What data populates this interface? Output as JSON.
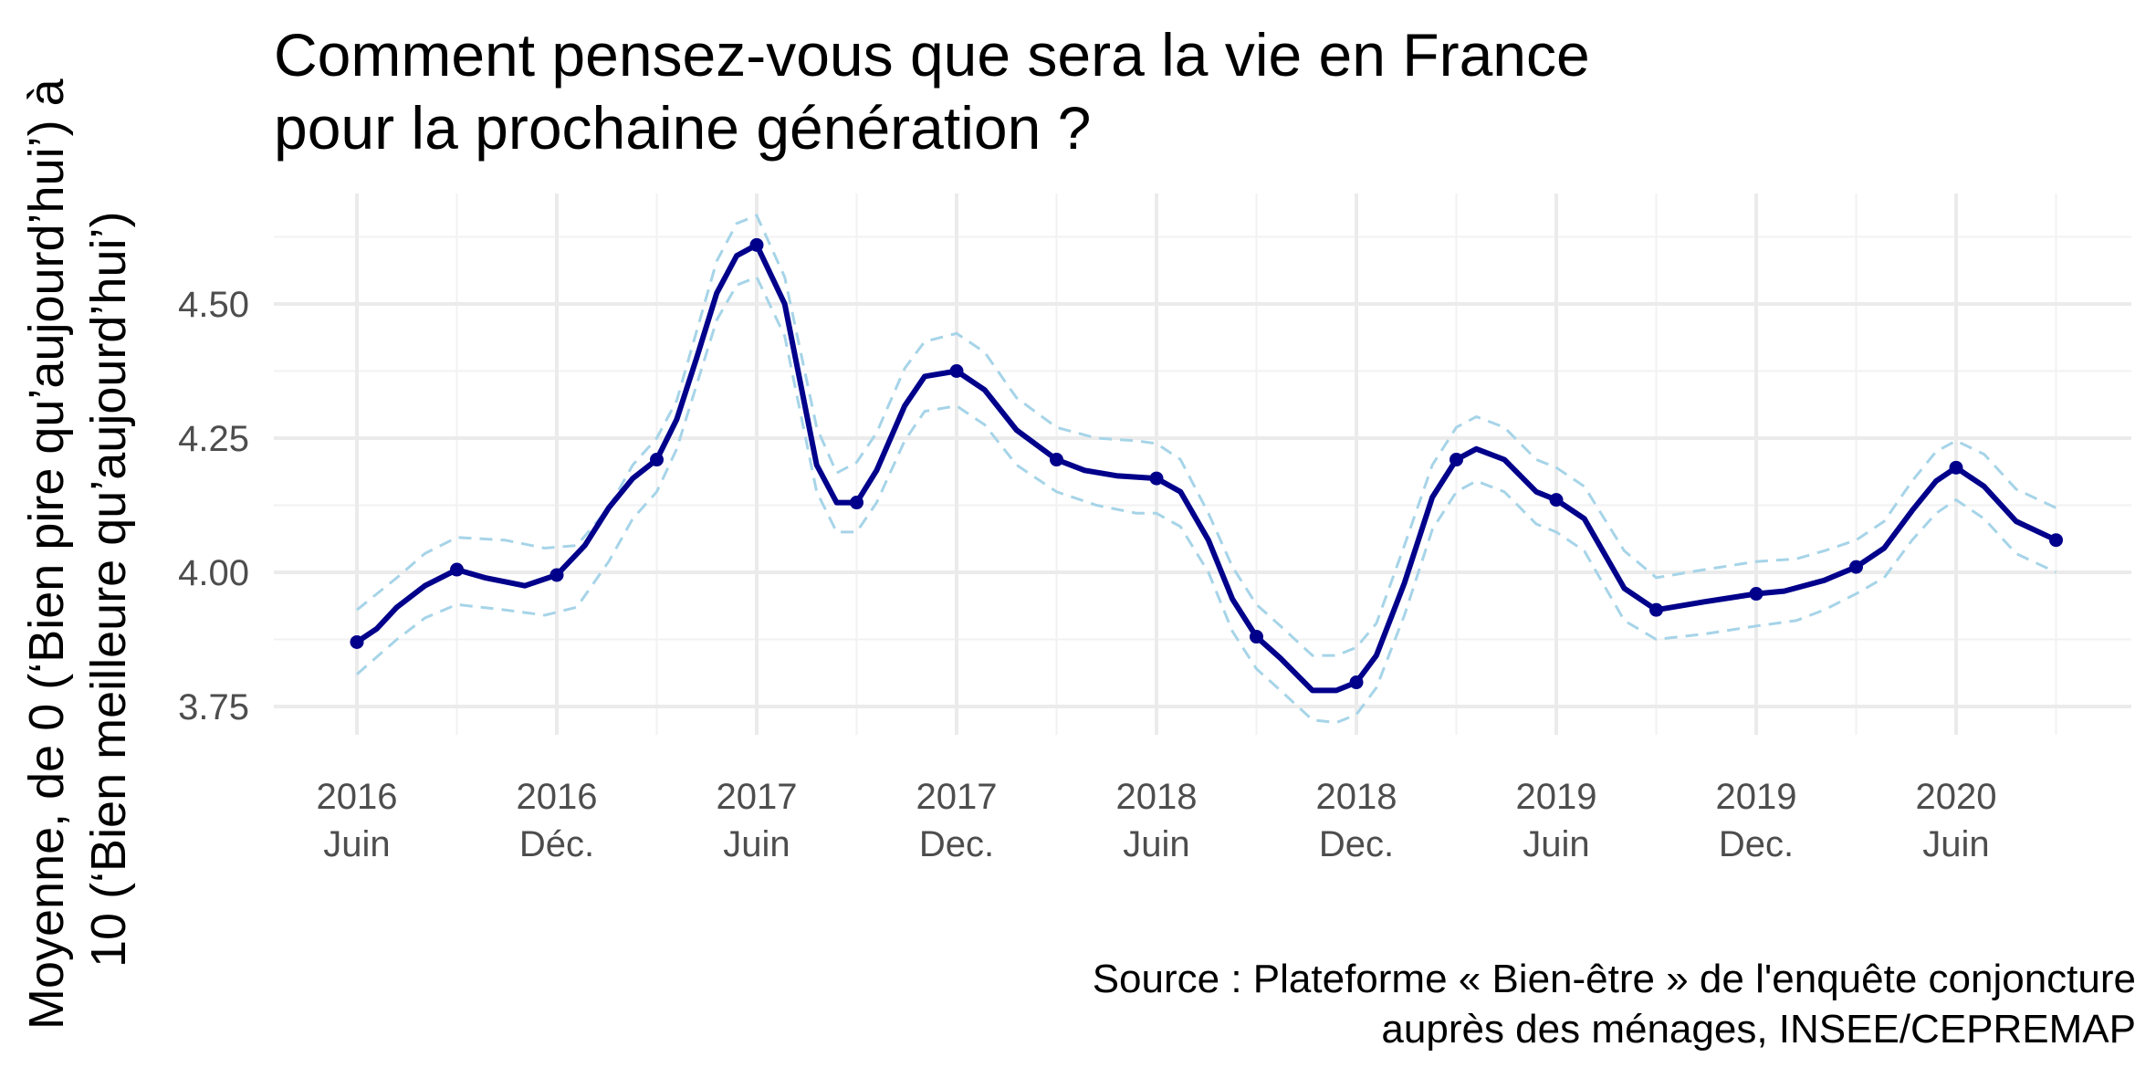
{
  "chart_data": {
    "type": "line",
    "title": [
      "Comment pensez-vous que sera la vie en France",
      "pour la prochaine génération ?"
    ],
    "ylabel": [
      "Moyenne, de 0 (‘Bien pire qu’aujourd’hui’) à",
      "10 (‘Bien meilleure qu’aujourd’hui’)"
    ],
    "xlabel": "",
    "caption": [
      "Source : Plateforme « Bien-être » de l'enquête conjoncture",
      "auprès des ménages, INSEE/CEPREMAP"
    ],
    "ylim": [
      3.68,
      4.72
    ],
    "yticks": [
      3.75,
      4.0,
      4.25,
      4.5
    ],
    "ytick_labels": [
      "3.75",
      "4.00",
      "4.25",
      "4.50"
    ],
    "xlim": [
      2016.18,
      2020.7
    ],
    "xticks": [
      {
        "x": 2016.33,
        "year": "2016",
        "period": "Juin"
      },
      {
        "x": 2016.83,
        "year": "2016",
        "period": "Déc."
      },
      {
        "x": 2017.33,
        "year": "2017",
        "period": "Juin"
      },
      {
        "x": 2017.83,
        "year": "2017",
        "period": "Dec."
      },
      {
        "x": 2018.33,
        "year": "2018",
        "period": "Juin"
      },
      {
        "x": 2018.83,
        "year": "2018",
        "period": "Dec."
      },
      {
        "x": 2019.33,
        "year": "2019",
        "period": "Juin"
      },
      {
        "x": 2019.83,
        "year": "2019",
        "period": "Dec."
      },
      {
        "x": 2020.33,
        "year": "2020",
        "period": "Juin"
      }
    ],
    "minor_x_gridlines": [
      2016.58,
      2017.08,
      2017.58,
      2018.08,
      2018.58,
      2019.08,
      2019.58,
      2020.08,
      2020.58
    ],
    "minor_y_gridlines": [
      3.875,
      4.125,
      4.375,
      4.625
    ],
    "grid": true,
    "points": [
      {
        "x": 2016.33,
        "y": 3.87
      },
      {
        "x": 2016.58,
        "y": 4.005
      },
      {
        "x": 2016.83,
        "y": 3.995
      },
      {
        "x": 2017.08,
        "y": 4.21
      },
      {
        "x": 2017.33,
        "y": 4.61
      },
      {
        "x": 2017.58,
        "y": 4.13
      },
      {
        "x": 2017.83,
        "y": 4.375
      },
      {
        "x": 2018.08,
        "y": 4.21
      },
      {
        "x": 2018.33,
        "y": 4.175
      },
      {
        "x": 2018.58,
        "y": 3.88
      },
      {
        "x": 2018.83,
        "y": 3.795
      },
      {
        "x": 2019.08,
        "y": 4.21
      },
      {
        "x": 2019.33,
        "y": 4.135
      },
      {
        "x": 2019.58,
        "y": 3.93
      },
      {
        "x": 2019.83,
        "y": 3.96
      },
      {
        "x": 2020.08,
        "y": 4.01
      },
      {
        "x": 2020.33,
        "y": 4.195
      },
      {
        "x": 2020.58,
        "y": 4.06
      }
    ],
    "smooth_line": [
      [
        2016.33,
        3.87
      ],
      [
        2016.38,
        3.895
      ],
      [
        2016.43,
        3.935
      ],
      [
        2016.5,
        3.975
      ],
      [
        2016.58,
        4.005
      ],
      [
        2016.65,
        3.99
      ],
      [
        2016.75,
        3.975
      ],
      [
        2016.83,
        3.995
      ],
      [
        2016.9,
        4.05
      ],
      [
        2016.96,
        4.12
      ],
      [
        2017.02,
        4.175
      ],
      [
        2017.08,
        4.21
      ],
      [
        2017.13,
        4.285
      ],
      [
        2017.18,
        4.4
      ],
      [
        2017.23,
        4.52
      ],
      [
        2017.28,
        4.59
      ],
      [
        2017.33,
        4.61
      ],
      [
        2017.4,
        4.5
      ],
      [
        2017.48,
        4.2
      ],
      [
        2017.53,
        4.13
      ],
      [
        2017.58,
        4.13
      ],
      [
        2017.63,
        4.19
      ],
      [
        2017.7,
        4.31
      ],
      [
        2017.75,
        4.365
      ],
      [
        2017.83,
        4.375
      ],
      [
        2017.9,
        4.34
      ],
      [
        2017.98,
        4.265
      ],
      [
        2018.08,
        4.21
      ],
      [
        2018.15,
        4.19
      ],
      [
        2018.23,
        4.18
      ],
      [
        2018.33,
        4.175
      ],
      [
        2018.39,
        4.15
      ],
      [
        2018.46,
        4.06
      ],
      [
        2018.52,
        3.95
      ],
      [
        2018.58,
        3.88
      ],
      [
        2018.64,
        3.84
      ],
      [
        2018.72,
        3.78
      ],
      [
        2018.78,
        3.78
      ],
      [
        2018.83,
        3.795
      ],
      [
        2018.88,
        3.845
      ],
      [
        2018.95,
        3.98
      ],
      [
        2019.02,
        4.14
      ],
      [
        2019.08,
        4.21
      ],
      [
        2019.13,
        4.23
      ],
      [
        2019.2,
        4.21
      ],
      [
        2019.28,
        4.15
      ],
      [
        2019.33,
        4.135
      ],
      [
        2019.4,
        4.1
      ],
      [
        2019.5,
        3.97
      ],
      [
        2019.58,
        3.93
      ],
      [
        2019.7,
        3.945
      ],
      [
        2019.83,
        3.96
      ],
      [
        2019.9,
        3.965
      ],
      [
        2020.0,
        3.985
      ],
      [
        2020.08,
        4.01
      ],
      [
        2020.15,
        4.045
      ],
      [
        2020.22,
        4.115
      ],
      [
        2020.28,
        4.17
      ],
      [
        2020.33,
        4.195
      ],
      [
        2020.4,
        4.16
      ],
      [
        2020.48,
        4.095
      ],
      [
        2020.58,
        4.06
      ]
    ],
    "ci_upper": [
      [
        2016.33,
        3.93
      ],
      [
        2016.43,
        3.99
      ],
      [
        2016.5,
        4.035
      ],
      [
        2016.58,
        4.065
      ],
      [
        2016.7,
        4.06
      ],
      [
        2016.8,
        4.045
      ],
      [
        2016.88,
        4.05
      ],
      [
        2016.96,
        4.12
      ],
      [
        2017.02,
        4.2
      ],
      [
        2017.08,
        4.25
      ],
      [
        2017.13,
        4.32
      ],
      [
        2017.18,
        4.45
      ],
      [
        2017.23,
        4.58
      ],
      [
        2017.28,
        4.65
      ],
      [
        2017.33,
        4.665
      ],
      [
        2017.4,
        4.55
      ],
      [
        2017.48,
        4.27
      ],
      [
        2017.53,
        4.185
      ],
      [
        2017.58,
        4.205
      ],
      [
        2017.63,
        4.26
      ],
      [
        2017.7,
        4.38
      ],
      [
        2017.75,
        4.43
      ],
      [
        2017.83,
        4.445
      ],
      [
        2017.9,
        4.41
      ],
      [
        2017.98,
        4.325
      ],
      [
        2018.08,
        4.27
      ],
      [
        2018.18,
        4.25
      ],
      [
        2018.28,
        4.245
      ],
      [
        2018.33,
        4.24
      ],
      [
        2018.39,
        4.21
      ],
      [
        2018.46,
        4.11
      ],
      [
        2018.52,
        4.01
      ],
      [
        2018.58,
        3.94
      ],
      [
        2018.64,
        3.9
      ],
      [
        2018.72,
        3.845
      ],
      [
        2018.78,
        3.845
      ],
      [
        2018.83,
        3.86
      ],
      [
        2018.88,
        3.905
      ],
      [
        2018.95,
        4.05
      ],
      [
        2019.02,
        4.2
      ],
      [
        2019.08,
        4.27
      ],
      [
        2019.13,
        4.29
      ],
      [
        2019.2,
        4.27
      ],
      [
        2019.28,
        4.21
      ],
      [
        2019.33,
        4.195
      ],
      [
        2019.4,
        4.16
      ],
      [
        2019.5,
        4.04
      ],
      [
        2019.58,
        3.99
      ],
      [
        2019.7,
        4.005
      ],
      [
        2019.83,
        4.02
      ],
      [
        2019.93,
        4.025
      ],
      [
        2020.0,
        4.04
      ],
      [
        2020.08,
        4.06
      ],
      [
        2020.15,
        4.095
      ],
      [
        2020.22,
        4.17
      ],
      [
        2020.28,
        4.225
      ],
      [
        2020.33,
        4.245
      ],
      [
        2020.4,
        4.22
      ],
      [
        2020.48,
        4.155
      ],
      [
        2020.58,
        4.12
      ]
    ],
    "ci_lower": [
      [
        2016.33,
        3.81
      ],
      [
        2016.43,
        3.875
      ],
      [
        2016.5,
        3.915
      ],
      [
        2016.58,
        3.94
      ],
      [
        2016.7,
        3.93
      ],
      [
        2016.8,
        3.92
      ],
      [
        2016.88,
        3.935
      ],
      [
        2016.96,
        4.02
      ],
      [
        2017.02,
        4.1
      ],
      [
        2017.08,
        4.15
      ],
      [
        2017.13,
        4.23
      ],
      [
        2017.18,
        4.35
      ],
      [
        2017.23,
        4.47
      ],
      [
        2017.28,
        4.535
      ],
      [
        2017.33,
        4.55
      ],
      [
        2017.4,
        4.44
      ],
      [
        2017.48,
        4.15
      ],
      [
        2017.53,
        4.075
      ],
      [
        2017.58,
        4.075
      ],
      [
        2017.63,
        4.13
      ],
      [
        2017.7,
        4.245
      ],
      [
        2017.75,
        4.3
      ],
      [
        2017.83,
        4.31
      ],
      [
        2017.9,
        4.275
      ],
      [
        2017.98,
        4.2
      ],
      [
        2018.08,
        4.15
      ],
      [
        2018.18,
        4.125
      ],
      [
        2018.28,
        4.11
      ],
      [
        2018.33,
        4.11
      ],
      [
        2018.39,
        4.085
      ],
      [
        2018.46,
        4.0
      ],
      [
        2018.52,
        3.89
      ],
      [
        2018.58,
        3.82
      ],
      [
        2018.64,
        3.78
      ],
      [
        2018.72,
        3.725
      ],
      [
        2018.78,
        3.72
      ],
      [
        2018.83,
        3.735
      ],
      [
        2018.88,
        3.785
      ],
      [
        2018.95,
        3.92
      ],
      [
        2019.02,
        4.08
      ],
      [
        2019.08,
        4.15
      ],
      [
        2019.13,
        4.17
      ],
      [
        2019.2,
        4.15
      ],
      [
        2019.28,
        4.09
      ],
      [
        2019.33,
        4.075
      ],
      [
        2019.4,
        4.04
      ],
      [
        2019.5,
        3.91
      ],
      [
        2019.58,
        3.875
      ],
      [
        2019.7,
        3.885
      ],
      [
        2019.83,
        3.9
      ],
      [
        2019.93,
        3.91
      ],
      [
        2020.0,
        3.93
      ],
      [
        2020.08,
        3.96
      ],
      [
        2020.15,
        3.99
      ],
      [
        2020.22,
        4.06
      ],
      [
        2020.28,
        4.11
      ],
      [
        2020.33,
        4.135
      ],
      [
        2020.4,
        4.1
      ],
      [
        2020.48,
        4.035
      ],
      [
        2020.58,
        4.0
      ]
    ],
    "colors": {
      "line": "#00008b",
      "ci": "#a6d4e8",
      "grid_major": "#ebebeb",
      "grid_minor": "#f2f2f2",
      "tick_text": "#4d4d4d"
    }
  }
}
